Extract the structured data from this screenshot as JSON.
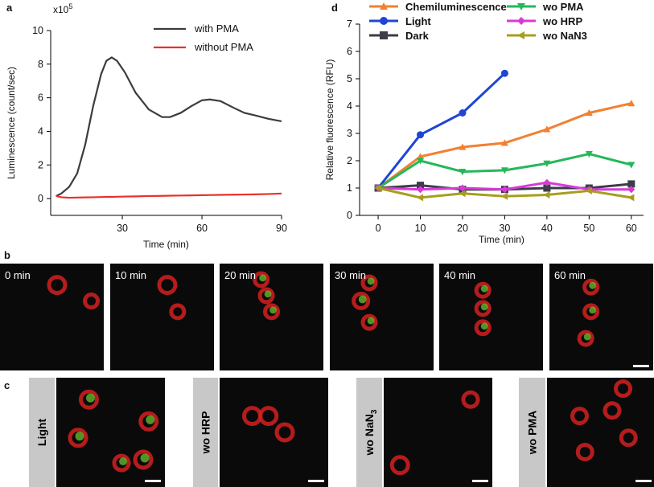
{
  "chart_data": [
    {
      "type": "line",
      "panel": "a",
      "multiplier": {
        "base": "x10",
        "exp": "5"
      },
      "x_label": "Time (min)",
      "y_label": "Luminescence (count/sec)",
      "x": [
        5,
        7,
        10,
        13,
        16,
        19,
        22,
        24,
        26,
        28,
        31,
        35,
        40,
        45,
        48,
        52,
        56,
        60,
        63,
        67,
        72,
        76,
        80,
        85,
        90
      ],
      "series": [
        {
          "name": "with PMA",
          "color": "#3c3c3c",
          "values": [
            0.15,
            0.3,
            0.7,
            1.5,
            3.2,
            5.5,
            7.4,
            8.2,
            8.4,
            8.2,
            7.5,
            6.3,
            5.3,
            4.85,
            4.85,
            5.1,
            5.5,
            5.85,
            5.9,
            5.8,
            5.4,
            5.1,
            4.95,
            4.75,
            4.6
          ]
        },
        {
          "name": "without PMA",
          "color": "#e8312a",
          "values": [
            0.15,
            0.08,
            0.05,
            0.06,
            0.07,
            0.08,
            0.09,
            0.1,
            0.1,
            0.11,
            0.12,
            0.13,
            0.15,
            0.16,
            0.17,
            0.18,
            0.19,
            0.2,
            0.21,
            0.22,
            0.23,
            0.24,
            0.25,
            0.27,
            0.3
          ]
        }
      ],
      "xlim": [
        3,
        90
      ],
      "xticks": [
        30,
        60,
        90
      ],
      "ylim": [
        -1,
        10
      ],
      "yticks": [
        0,
        2,
        4,
        6,
        8,
        10
      ]
    },
    {
      "type": "line",
      "panel": "d",
      "x_label": "Time (min)",
      "y_label": "Relative fluorescence (RFU)",
      "x": [
        0,
        10,
        20,
        30,
        40,
        50,
        60
      ],
      "series": [
        {
          "name": "Chemiluminescence",
          "color": "#f28030",
          "marker": "triangle-up",
          "values": [
            1,
            2.15,
            2.5,
            2.65,
            3.15,
            3.75,
            4.1
          ]
        },
        {
          "name": "Light",
          "color": "#1f45d4",
          "marker": "circle",
          "values": [
            1,
            2.95,
            3.75,
            5.2,
            null,
            null,
            null
          ]
        },
        {
          "name": "Dark",
          "color": "#3c3c4a",
          "marker": "square",
          "values": [
            1,
            1.1,
            0.95,
            0.95,
            1.0,
            1.0,
            1.15
          ]
        },
        {
          "name": "wo PMA",
          "color": "#25b85a",
          "marker": "triangle-down",
          "values": [
            1,
            2.0,
            1.6,
            1.65,
            1.9,
            2.25,
            1.85
          ]
        },
        {
          "name": "wo HRP",
          "color": "#d83ad8",
          "marker": "diamond",
          "values": [
            1,
            0.95,
            1.0,
            0.95,
            1.2,
            0.95,
            0.95
          ]
        },
        {
          "name": "wo NaN3",
          "color": "#a89e1e",
          "marker": "triangle-left",
          "values": [
            1,
            0.65,
            0.8,
            0.7,
            0.75,
            0.9,
            0.65
          ]
        }
      ],
      "xlim": [
        -4.4,
        62.9
      ],
      "xticks": [
        0,
        10,
        20,
        30,
        40,
        50,
        60
      ],
      "ylim": [
        0,
        7
      ],
      "yticks": [
        0,
        1,
        2,
        3,
        4,
        5,
        6,
        7
      ]
    }
  ],
  "panel_b": {
    "label": "b",
    "images": [
      "0 min",
      "10 min",
      "20 min",
      "30 min",
      "40 min",
      "60 min"
    ]
  },
  "panel_c": {
    "label": "c",
    "images": [
      {
        "label": "Light"
      },
      {
        "label": "wo HRP"
      },
      {
        "label_base": "wo NaN",
        "label_sub": "3"
      },
      {
        "label": "wo PMA"
      }
    ]
  }
}
